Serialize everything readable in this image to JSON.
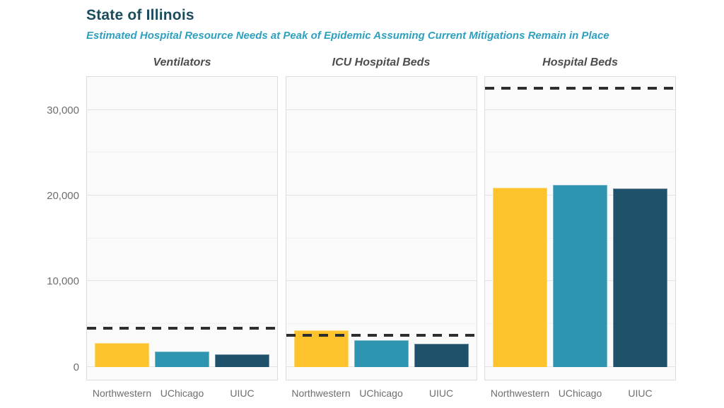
{
  "header": {
    "title": "State of Illinois",
    "subtitle": "Estimated Hospital Resource Needs at Peak of Epidemic Assuming Current Mitigations Remain in Place"
  },
  "colors": {
    "title": "#1B4C5E",
    "subtitle": "#2D9FBF",
    "northwestern_bar": "#FDC32D",
    "uchicago_bar": "#2E94B0",
    "uiuc_bar": "#20516A",
    "capacity_line": "#2E2E2E",
    "panel_background": "#FAFAFA",
    "panel_border": "#DCDCDC"
  },
  "chart_data": {
    "type": "bar",
    "title": "State of Illinois",
    "subtitle": "Estimated Hospital Resource Needs at Peak of Epidemic Assuming Current Mitigations Remain in Place",
    "categories": [
      "Northwestern",
      "UChicago",
      "UIUC"
    ],
    "series_colors": [
      "#FDC32D",
      "#2E94B0",
      "#20516A"
    ],
    "facets": [
      {
        "label": "Ventilators",
        "values": [
          2800,
          1800,
          1500
        ],
        "capacity_line": 4500
      },
      {
        "label": "ICU Hospital Beds",
        "values": [
          4300,
          3150,
          2700
        ],
        "capacity_line": 3700
      },
      {
        "label": "Hospital Beds",
        "values": [
          20900,
          21200,
          20800
        ],
        "capacity_line": 32500
      }
    ],
    "capacity_line_style": "dashed",
    "xlabel": "",
    "ylabel": "",
    "y_axis": {
      "tick_values": [
        0,
        10000,
        20000,
        30000
      ],
      "tick_labels": [
        "0",
        "10,000",
        "20,000",
        "30,000"
      ],
      "minor_tick_values": [
        5000,
        15000,
        25000
      ],
      "ylim": [
        -1500,
        34000
      ]
    },
    "grid": true,
    "legend_position": "none"
  }
}
